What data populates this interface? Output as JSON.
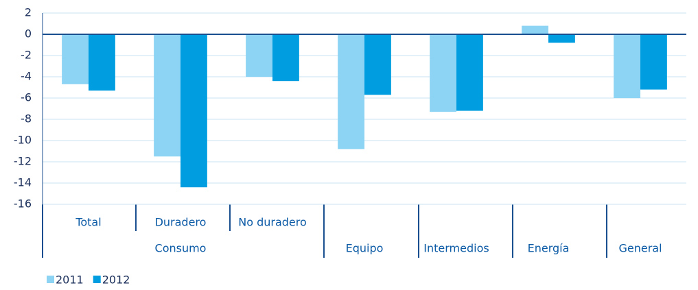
{
  "chart_data": {
    "type": "bar",
    "categories": [
      "Consumo",
      "Consumo",
      "Consumo",
      "Equipo",
      "Intermedios",
      "Energía",
      "General"
    ],
    "subcategories": [
      "Total",
      "Duradero",
      "No duradero",
      null,
      null,
      null,
      null
    ],
    "series": [
      {
        "name": "2011",
        "color": "#8dd3f4",
        "values": [
          -4.7,
          -11.5,
          -4.0,
          -10.8,
          -7.3,
          0.8,
          -6.0
        ]
      },
      {
        "name": "2012",
        "color": "#009ee0",
        "values": [
          -5.3,
          -14.4,
          -4.4,
          -5.7,
          -7.2,
          -0.8,
          -5.2
        ]
      }
    ],
    "ylim": [
      -16,
      2
    ],
    "yticks": [
      -16,
      -14,
      -12,
      -10,
      -8,
      -6,
      -4,
      -2,
      0,
      2
    ],
    "grid": true,
    "legend": "bottom-left"
  }
}
